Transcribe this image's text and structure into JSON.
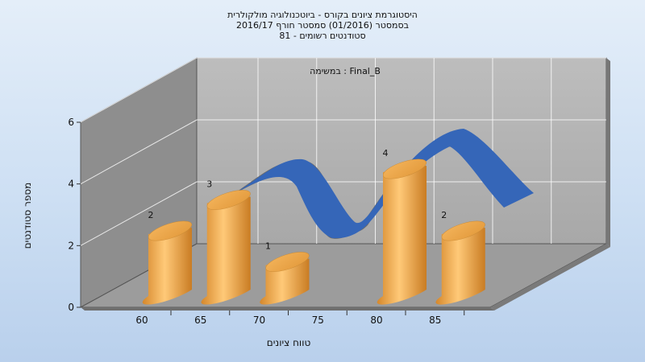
{
  "chart_data": {
    "type": "bar",
    "title_lines": [
      "היסטוגרמת ציונים בקורס - ביוטכנולוגיה מולקולרית",
      "בסמסטר  (01/2016)  סמסטר חורף 2016/17",
      "סטודנטים רשומים - 81"
    ],
    "subtitle": "במשימה : Final_B",
    "xlabel": "טווח ציונים",
    "ylabel": "מספר סטודנטים",
    "ylim": [
      0,
      6
    ],
    "y_ticks": [
      0,
      2,
      4,
      6
    ],
    "x_ticks": [
      60,
      65,
      70,
      75,
      80,
      85
    ],
    "bars": [
      {
        "x": 60,
        "value": 2
      },
      {
        "x": 65,
        "value": 3
      },
      {
        "x": 70,
        "value": 1
      },
      {
        "x": 80,
        "value": 4
      },
      {
        "x": 85,
        "value": 2
      }
    ],
    "curve": {
      "type": "distribution ribbon",
      "color": "#3566b8"
    },
    "bar_color": "#f0a84a",
    "grid": true
  }
}
